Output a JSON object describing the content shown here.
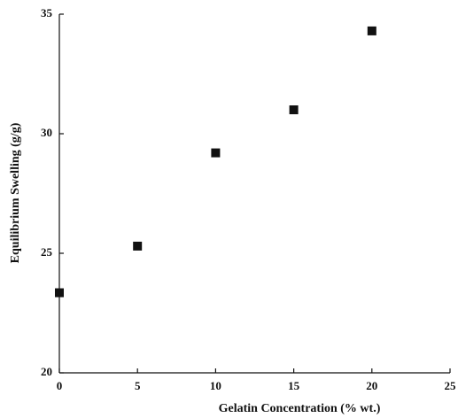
{
  "chart_data": {
    "type": "scatter",
    "x_label": "Gelatin Concentration (% wt.)",
    "y_label": "Equilibrium Swelling (g/g)",
    "series": [
      {
        "color": "#111111",
        "x": [
          0,
          5,
          10,
          15,
          20
        ],
        "values": [
          23.35,
          25.3,
          29.2,
          31.0,
          34.3
        ]
      }
    ],
    "xlim": [
      0,
      25
    ],
    "xticks": [
      0,
      5,
      10,
      15,
      20,
      25
    ],
    "ylim": [
      20,
      35
    ],
    "yticks": [
      20,
      25,
      30,
      35
    ]
  }
}
